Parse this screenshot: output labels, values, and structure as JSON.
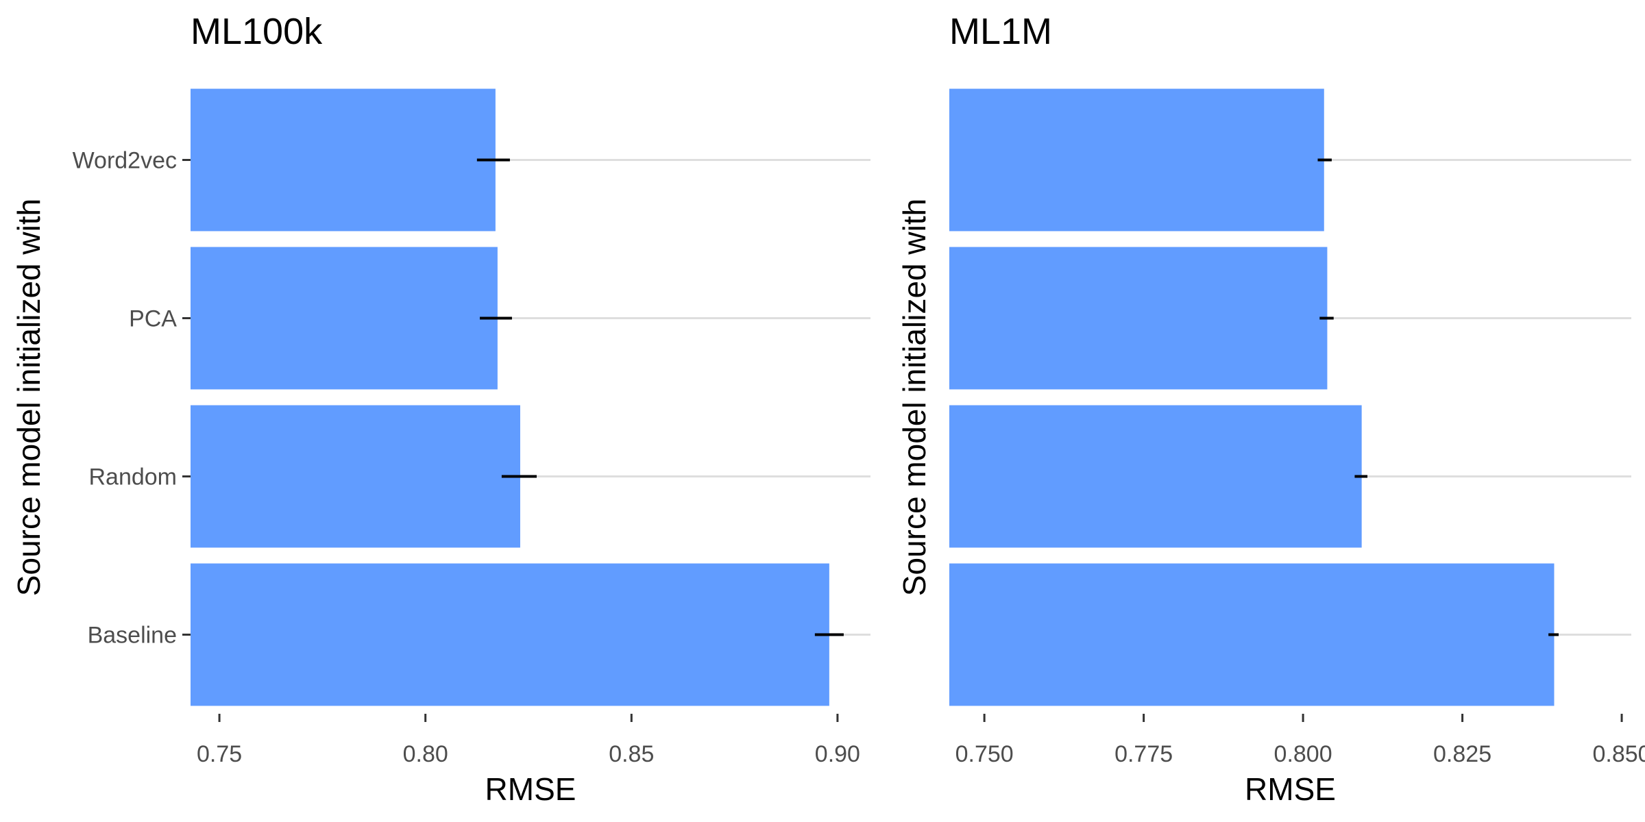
{
  "chart_data": [
    {
      "type": "bar",
      "orientation": "horizontal",
      "title": "ML100k",
      "xlabel": "RMSE",
      "ylabel": "Source model initialized with",
      "categories": [
        "Word2vec",
        "PCA",
        "Random",
        "Baseline"
      ],
      "values": [
        0.817,
        0.8175,
        0.823,
        0.898
      ],
      "error_low": [
        0.8125,
        0.8132,
        0.8185,
        0.8945
      ],
      "error_high": [
        0.8205,
        0.821,
        0.827,
        0.9015
      ],
      "xlim": [
        0.743,
        0.908
      ],
      "xticks": [
        "0.75",
        "0.80",
        "0.85",
        "0.90"
      ],
      "grid": "horizontal-major",
      "colors": {
        "bar": "#619cff",
        "errorbar": "#000000",
        "gridline": "#dedede"
      }
    },
    {
      "type": "bar",
      "orientation": "horizontal",
      "title": "ML1M",
      "xlabel": "RMSE",
      "ylabel": "Source model initialized with",
      "categories": [
        "Word2vec",
        "PCA",
        "Random",
        "Baseline"
      ],
      "values": [
        0.8033,
        0.8038,
        0.8092,
        0.8394
      ],
      "error_low": [
        0.8023,
        0.8026,
        0.8081,
        0.8385
      ],
      "error_high": [
        0.8045,
        0.8048,
        0.8101,
        0.8401
      ],
      "xlim": [
        0.7445,
        0.8515
      ],
      "xticks": [
        "0.750",
        "0.775",
        "0.800",
        "0.825",
        "0.850"
      ],
      "grid": "horizontal-major",
      "colors": {
        "bar": "#619cff",
        "errorbar": "#000000",
        "gridline": "#dedede"
      }
    }
  ]
}
